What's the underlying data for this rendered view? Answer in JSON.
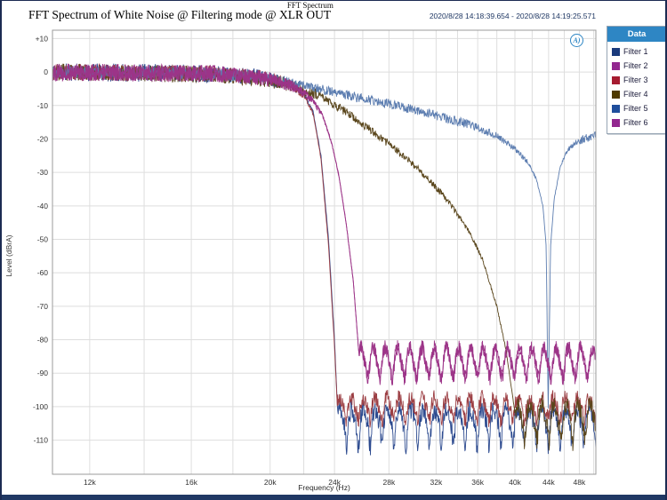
{
  "window": {
    "title": "FFT Spectrum"
  },
  "header": {
    "graph_title": "FFT Spectrum of White Noise @ Filtering mode @ XLR OUT",
    "timestamp": "2020/8/28 14:18:39.654 - 2020/8/28 14:19:25.571"
  },
  "logo": {
    "text": "A)",
    "color": "#2e86c4"
  },
  "legend": {
    "title": "Data",
    "header_bg": "#2e86c4",
    "items": [
      {
        "label": "Filter 1",
        "swatch": "#1a3a7c"
      },
      {
        "label": "Filter 2",
        "swatch": "#92278f"
      },
      {
        "label": "Filter 3",
        "swatch": "#a61c30"
      },
      {
        "label": "Filter 4",
        "swatch": "#4f3a00"
      },
      {
        "label": "Filter 5",
        "swatch": "#1f4e9c"
      },
      {
        "label": "Filter 6",
        "swatch": "#92278f"
      }
    ]
  },
  "chart_data": {
    "type": "line",
    "title": "FFT Spectrum of White Noise @ Filtering mode @ XLR OUT",
    "xlabel": "Frequency (Hz)",
    "ylabel": "Level (dBrA)",
    "x_scale": "log",
    "x_range": [
      10800,
      50300
    ],
    "y_range": [
      -120.2,
      12.5
    ],
    "x_ticks_labeled": [
      12000,
      16000,
      20000,
      24000,
      28000,
      32000,
      36000,
      40000,
      44000,
      48000
    ],
    "x_grid": {
      "start": 12000,
      "step": 2000,
      "end": 50000
    },
    "y_ticks": [
      10,
      0,
      -10,
      -20,
      -30,
      -40,
      -50,
      -60,
      -70,
      -80,
      -90,
      -100,
      -110
    ],
    "grid_color": "#dedede",
    "axis_color": "#9b9b9b",
    "legend_position": "right",
    "series": [
      {
        "name": "Filter 1",
        "stroke": "#2c4a8f",
        "z": 1,
        "seed": 11,
        "noise_db": 2.7,
        "envelope": [
          [
            10800,
            0
          ],
          [
            17000,
            -0.4
          ],
          [
            19500,
            -1.5
          ],
          [
            21000,
            -3.2
          ],
          [
            22000,
            -6.5
          ],
          [
            22600,
            -12
          ],
          [
            23100,
            -25
          ],
          [
            23600,
            -50
          ],
          [
            24000,
            -80
          ],
          [
            24250,
            -105
          ],
          [
            24600,
            -135
          ]
        ],
        "floor": {
          "start": 24150,
          "base": -103.5,
          "ripple": 2.6,
          "period": 0.0146,
          "dip": 6,
          "noise": 2.8
        }
      },
      {
        "name": "Filter 2",
        "stroke": "#9c3488",
        "z": 5,
        "seed": 22,
        "noise_db": 2.6,
        "envelope": [
          [
            10800,
            0
          ],
          [
            17500,
            -0.5
          ],
          [
            20000,
            -2.2
          ],
          [
            21500,
            -4.5
          ],
          [
            22500,
            -8
          ],
          [
            23200,
            -13
          ],
          [
            23800,
            -21
          ],
          [
            24300,
            -31
          ],
          [
            24800,
            -45
          ],
          [
            25300,
            -62
          ],
          [
            25750,
            -86
          ],
          [
            26100,
            -110
          ]
        ],
        "floor": {
          "start": 25650,
          "base": -85.8,
          "ripple": 3.4,
          "period": 0.015,
          "dip": 2.5,
          "noise": 2.3
        }
      },
      {
        "name": "Filter 3",
        "stroke": "#9c3f44",
        "z": 2,
        "seed": 33,
        "noise_db": 2.5,
        "envelope": [
          [
            10800,
            0
          ],
          [
            17000,
            -0.5
          ],
          [
            19500,
            -1.6
          ],
          [
            21000,
            -3.4
          ],
          [
            22000,
            -6.8
          ],
          [
            22600,
            -12.5
          ],
          [
            23100,
            -26
          ],
          [
            23600,
            -52
          ],
          [
            24000,
            -82
          ],
          [
            24250,
            -105
          ],
          [
            24600,
            -135
          ]
        ],
        "floor": {
          "start": 24150,
          "base": -99.5,
          "ripple": 2.2,
          "period": 0.0146,
          "dip": 2.5,
          "noise": 2.4
        }
      },
      {
        "name": "Filter 4",
        "stroke": "#5a461c",
        "z": 3,
        "seed": 44,
        "noise_db": 2.6,
        "envelope": [
          [
            10800,
            0
          ],
          [
            17000,
            -0.8
          ],
          [
            19000,
            -1.8
          ],
          [
            21000,
            -3.6
          ],
          [
            23000,
            -7
          ],
          [
            25000,
            -12.5
          ],
          [
            27000,
            -18.5
          ],
          [
            29000,
            -24.5
          ],
          [
            31000,
            -31
          ],
          [
            33000,
            -38
          ],
          [
            35000,
            -47
          ],
          [
            36500,
            -56
          ],
          [
            38000,
            -70
          ],
          [
            39000,
            -83
          ],
          [
            39900,
            -100
          ],
          [
            40500,
            -115
          ]
        ],
        "floor": {
          "start": 40000,
          "base": -102.5,
          "ripple": 3,
          "period": 0.0148,
          "dip": 5,
          "noise": 3.2
        }
      },
      {
        "name": "Filter 5",
        "stroke": "#5c7db0",
        "z": 4,
        "seed": 55,
        "noise_db": 1.9,
        "envelope": [
          [
            10800,
            0.2
          ],
          [
            16000,
            -0.3
          ],
          [
            19000,
            -1.2
          ],
          [
            21000,
            -2.8
          ],
          [
            23000,
            -5
          ],
          [
            25000,
            -7
          ],
          [
            28000,
            -9.5
          ],
          [
            32000,
            -13
          ],
          [
            35000,
            -15.5
          ],
          [
            38000,
            -19
          ],
          [
            40000,
            -23
          ],
          [
            41500,
            -27
          ],
          [
            42500,
            -32
          ],
          [
            43300,
            -40
          ],
          [
            43700,
            -52
          ],
          [
            43950,
            -101
          ],
          [
            44250,
            -52
          ],
          [
            44700,
            -38
          ],
          [
            45500,
            -28
          ],
          [
            46500,
            -23
          ],
          [
            48000,
            -20.5
          ],
          [
            50300,
            -19
          ]
        ]
      },
      {
        "name": "Filter 6",
        "stroke": "#9c3488",
        "z": 6,
        "seed": 66,
        "noise_db": 2.6,
        "envelope": [
          [
            10800,
            0
          ],
          [
            17500,
            -0.5
          ],
          [
            20000,
            -2.2
          ],
          [
            21500,
            -4.5
          ],
          [
            22500,
            -8
          ],
          [
            23200,
            -13
          ],
          [
            23800,
            -21
          ],
          [
            24300,
            -31
          ],
          [
            24800,
            -45
          ],
          [
            25300,
            -62
          ],
          [
            25750,
            -86
          ],
          [
            26100,
            -110
          ]
        ],
        "floor": {
          "start": 25650,
          "base": -85.8,
          "ripple": 3.4,
          "period": 0.015,
          "dip": 2.5,
          "noise": 2.3
        }
      }
    ]
  }
}
